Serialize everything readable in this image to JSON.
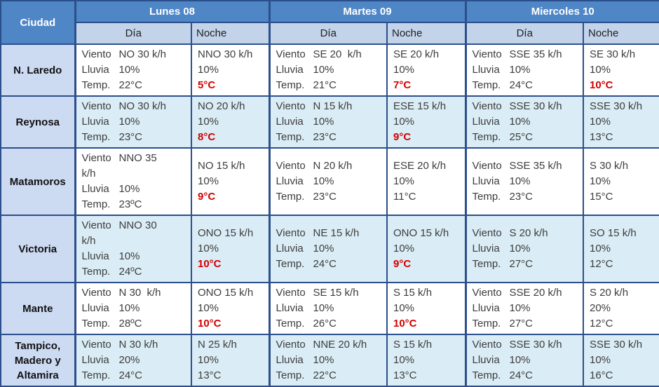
{
  "colors": {
    "header_blue": "#4f86c6",
    "subheader_blue": "#c3d4ea",
    "city_column_blue": "#ccdaf2",
    "stripe_blue": "#daecf5",
    "border_navy": "#2b4f8c",
    "bottom_bar_blue": "#2a5aa0",
    "red_temp": "#d40000",
    "text_dark": "#3d3d3d"
  },
  "table": {
    "corner_header": "Ciudad",
    "day_headers": [
      {
        "label": "Lunes 08"
      },
      {
        "label": "Martes 09"
      },
      {
        "label": "Miercoles 10"
      }
    ],
    "sub_headers": {
      "day": "Día",
      "night": "Noche"
    },
    "rows": [
      {
        "city": "N. Laredo",
        "cells": [
          {
            "kind": "day",
            "lines": [
              {
                "label": "Viento",
                "value": "NO 30 k/h"
              },
              {
                "label": "Lluvia",
                "value": "10%"
              },
              {
                "label": "Temp.",
                "value": "22°C"
              }
            ]
          },
          {
            "kind": "night",
            "lines": [
              {
                "value": "NNO 30 k/h"
              },
              {
                "value": "10%"
              },
              {
                "value": "5°C",
                "red": true
              }
            ]
          },
          {
            "kind": "day",
            "lines": [
              {
                "label": "Viento",
                "value": "SE 20  k/h"
              },
              {
                "label": "Lluvia",
                "value": "10%"
              },
              {
                "label": "Temp.",
                "value": "21°C"
              }
            ]
          },
          {
            "kind": "night",
            "lines": [
              {
                "value": "SE 20 k/h"
              },
              {
                "value": "10%"
              },
              {
                "value": "7°C",
                "red": true
              }
            ]
          },
          {
            "kind": "day",
            "lines": [
              {
                "label": "Viento",
                "value": "SSE 35 k/h"
              },
              {
                "label": "Lluvia",
                "value": "10%"
              },
              {
                "label": "Temp.",
                "value": "24°C"
              }
            ]
          },
          {
            "kind": "night",
            "lines": [
              {
                "value": "SE 30 k/h"
              },
              {
                "value": "10%"
              },
              {
                "value": "10°C",
                "red": true
              }
            ]
          }
        ]
      },
      {
        "city": "Reynosa",
        "cells": [
          {
            "kind": "day",
            "lines": [
              {
                "label": "Viento",
                "value": "NO 30 k/h"
              },
              {
                "label": "Lluvia",
                "value": "10%"
              },
              {
                "label": "Temp.",
                "value": "23°C"
              }
            ]
          },
          {
            "kind": "night",
            "lines": [
              {
                "value": "NO 20 k/h"
              },
              {
                "value": "10%"
              },
              {
                "value": "8°C",
                "red": true
              }
            ]
          },
          {
            "kind": "day",
            "lines": [
              {
                "label": "Viento",
                "value": "N 15 k/h"
              },
              {
                "label": "Lluvia",
                "value": "10%"
              },
              {
                "label": "Temp.",
                "value": "23°C"
              }
            ]
          },
          {
            "kind": "night",
            "lines": [
              {
                "value": "ESE 15 k/h"
              },
              {
                "value": "10%"
              },
              {
                "value": "9°C",
                "red": true
              }
            ]
          },
          {
            "kind": "day",
            "lines": [
              {
                "label": "Viento",
                "value": "SSE 30 k/h"
              },
              {
                "label": "Lluvia",
                "value": "10%"
              },
              {
                "label": "Temp.",
                "value": "25°C"
              }
            ]
          },
          {
            "kind": "night",
            "lines": [
              {
                "value": "SSE 30 k/h"
              },
              {
                "value": "10%"
              },
              {
                "value": "13°C"
              }
            ]
          }
        ]
      },
      {
        "city": "Matamoros",
        "cells": [
          {
            "kind": "day",
            "lines": [
              {
                "label": "Viento",
                "value": "NNO 35"
              },
              {
                "value": "k/h"
              },
              {
                "label": "Lluvia",
                "value": "10%"
              },
              {
                "label": "Temp.",
                "value": "23ºC"
              }
            ]
          },
          {
            "kind": "night",
            "lines": [
              {
                "value": "NO 15 k/h"
              },
              {
                "value": "10%"
              },
              {
                "value": "9°C",
                "red": true
              }
            ]
          },
          {
            "kind": "day",
            "lines": [
              {
                "label": "Viento",
                "value": "N 20 k/h"
              },
              {
                "label": "Lluvia",
                "value": "10%"
              },
              {
                "label": "Temp.",
                "value": "23°C"
              }
            ]
          },
          {
            "kind": "night",
            "lines": [
              {
                "value": "ESE 20 k/h"
              },
              {
                "value": "10%"
              },
              {
                "value": "11°C"
              }
            ]
          },
          {
            "kind": "day",
            "lines": [
              {
                "label": "Viento",
                "value": "SSE 35 k/h"
              },
              {
                "label": "Lluvia",
                "value": "10%"
              },
              {
                "label": "Temp.",
                "value": "23°C"
              }
            ]
          },
          {
            "kind": "night",
            "lines": [
              {
                "value": "S 30 k/h"
              },
              {
                "value": "10%"
              },
              {
                "value": "15°C"
              }
            ]
          }
        ]
      },
      {
        "city": "Victoria",
        "cells": [
          {
            "kind": "day",
            "lines": [
              {
                "label": "Viento",
                "value": "NNO 30"
              },
              {
                "value": "k/h"
              },
              {
                "label": "Lluvia",
                "value": "10%"
              },
              {
                "label": "Temp.",
                "value": "24ºC"
              }
            ]
          },
          {
            "kind": "night",
            "lines": [
              {
                "value": "ONO 15 k/h"
              },
              {
                "value": "10%"
              },
              {
                "value": "10°C",
                "red": true
              }
            ]
          },
          {
            "kind": "day",
            "lines": [
              {
                "label": "Viento",
                "value": "NE 15 k/h"
              },
              {
                "label": "Lluvia",
                "value": "10%"
              },
              {
                "label": "Temp.",
                "value": "24°C"
              }
            ]
          },
          {
            "kind": "night",
            "lines": [
              {
                "value": "ONO 15 k/h"
              },
              {
                "value": "10%"
              },
              {
                "value": "9°C",
                "red": true
              }
            ]
          },
          {
            "kind": "day",
            "lines": [
              {
                "label": "Viento",
                "value": "S 20 k/h"
              },
              {
                "label": "Lluvia",
                "value": "10%"
              },
              {
                "label": "Temp.",
                "value": "27°C"
              }
            ]
          },
          {
            "kind": "night",
            "lines": [
              {
                "value": "SO 15 k/h"
              },
              {
                "value": "10%"
              },
              {
                "value": "12°C"
              }
            ]
          }
        ]
      },
      {
        "city": "Mante",
        "cells": [
          {
            "kind": "day",
            "lines": [
              {
                "label": "Viento",
                "value": "N 30  k/h"
              },
              {
                "label": "Lluvia",
                "value": "10%"
              },
              {
                "label": "Temp.",
                "value": "28ºC"
              }
            ]
          },
          {
            "kind": "night",
            "lines": [
              {
                "value": "ONO 15 k/h"
              },
              {
                "value": "10%"
              },
              {
                "value": "10°C",
                "red": true
              }
            ]
          },
          {
            "kind": "day",
            "lines": [
              {
                "label": "Viento",
                "value": "SE 15 k/h"
              },
              {
                "label": "Lluvia",
                "value": "10%"
              },
              {
                "label": "Temp.",
                "value": "26°C"
              }
            ]
          },
          {
            "kind": "night",
            "lines": [
              {
                "value": "S 15 k/h"
              },
              {
                "value": "10%"
              },
              {
                "value": "10°C",
                "red": true
              }
            ]
          },
          {
            "kind": "day",
            "lines": [
              {
                "label": "Viento",
                "value": "SSE 20 k/h"
              },
              {
                "label": "Lluvia",
                "value": "10%"
              },
              {
                "label": "Temp.",
                "value": "27°C"
              }
            ]
          },
          {
            "kind": "night",
            "lines": [
              {
                "value": "S 20 k/h"
              },
              {
                "value": "20%"
              },
              {
                "value": "12°C"
              }
            ]
          }
        ]
      },
      {
        "city": "Tampico, Madero y Altamira",
        "cells": [
          {
            "kind": "day",
            "lines": [
              {
                "label": "Viento",
                "value": "N 30 k/h"
              },
              {
                "label": "Lluvia",
                "value": "20%"
              },
              {
                "label": "Temp.",
                "value": "24°C"
              }
            ]
          },
          {
            "kind": "night",
            "lines": [
              {
                "value": "N 25 k/h"
              },
              {
                "value": "10%"
              },
              {
                "value": "13°C"
              }
            ]
          },
          {
            "kind": "day",
            "lines": [
              {
                "label": "Viento",
                "value": "NNE 20 k/h"
              },
              {
                "label": "Lluvia",
                "value": "10%"
              },
              {
                "label": "Temp.",
                "value": "22°C"
              }
            ]
          },
          {
            "kind": "night",
            "lines": [
              {
                "value": "S 15 k/h"
              },
              {
                "value": "10%"
              },
              {
                "value": "13°C"
              }
            ]
          },
          {
            "kind": "day",
            "lines": [
              {
                "label": "Viento",
                "value": "SSE 30 k/h"
              },
              {
                "label": "Lluvia",
                "value": "10%"
              },
              {
                "label": "Temp.",
                "value": "24°C"
              }
            ]
          },
          {
            "kind": "night",
            "lines": [
              {
                "value": "SSE 30 k/h"
              },
              {
                "value": "10%"
              },
              {
                "value": "16°C"
              }
            ]
          }
        ]
      }
    ]
  }
}
